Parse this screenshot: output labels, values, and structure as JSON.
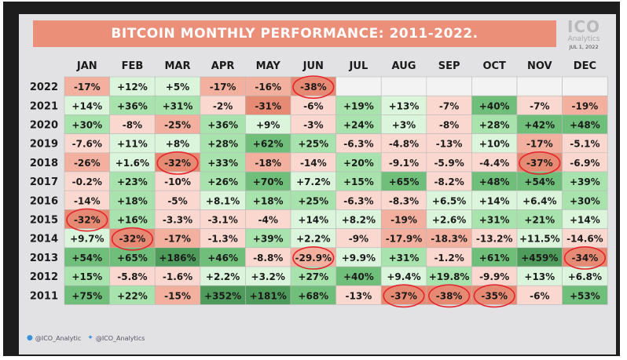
{
  "title": "BITCOIN MONTHLY PERFORMANCE: 2011-2022.",
  "logo": {
    "mark": "ICO",
    "name": "Analytics",
    "date": "JUL 1, 2022"
  },
  "footer": {
    "handle1": "@ICO_Analytic",
    "handle2": "@ICO_Analytics",
    "icon1": "globe-icon",
    "icon2": "twitter-icon"
  },
  "colors": {
    "banner": "#ec8f79",
    "neg_strong": "#e68a73",
    "neg_mid": "#f3b09e",
    "neg_light": "#fbd8cf",
    "pos_light": "#dbf4dc",
    "pos_mid": "#a8e3ad",
    "pos_strong": "#6fbf7b",
    "pos_xstrong": "#4f9b5c",
    "annotation": "#e8242b"
  },
  "chart_data": {
    "type": "heatmap",
    "title": "BITCOIN MONTHLY PERFORMANCE: 2011-2022.",
    "columns": [
      "JAN",
      "FEB",
      "MAR",
      "APR",
      "MAY",
      "JUN",
      "JUL",
      "AUG",
      "SEP",
      "OCT",
      "NOV",
      "DEC"
    ],
    "rows": [
      {
        "year": "2022",
        "cells": [
          "-17%",
          "+12%",
          "+5%",
          "-17%",
          "-16%",
          "-38%",
          "",
          "",
          "",
          "",
          "",
          ""
        ]
      },
      {
        "year": "2021",
        "cells": [
          "+14%",
          "+36%",
          "+31%",
          "-2%",
          "-31%",
          "-6%",
          "+19%",
          "+13%",
          "-7%",
          "+40%",
          "-7%",
          "-19%"
        ]
      },
      {
        "year": "2020",
        "cells": [
          "+30%",
          "-8%",
          "-25%",
          "+36%",
          "+9%",
          "-3%",
          "+24%",
          "+3%",
          "-8%",
          "+28%",
          "+42%",
          "+48%"
        ]
      },
      {
        "year": "2019",
        "cells": [
          "-7.6%",
          "+11%",
          "+8%",
          "+28%",
          "+62%",
          "+25%",
          "-6.3%",
          "-4.8%",
          "-13%",
          "+10%",
          "-17%",
          "-5.1%"
        ]
      },
      {
        "year": "2018",
        "cells": [
          "-26%",
          "+1.6%",
          "-32%",
          "+33%",
          "-18%",
          "-14%",
          "+20%",
          "-9.1%",
          "-5.9%",
          "-4.4%",
          "-37%",
          "-6.9%"
        ]
      },
      {
        "year": "2017",
        "cells": [
          "-0.2%",
          "+23%",
          "-10%",
          "+26%",
          "+70%",
          "+7.2%",
          "+15%",
          "+65%",
          "-8.2%",
          "+48%",
          "+54%",
          "+39%"
        ]
      },
      {
        "year": "2016",
        "cells": [
          "-14%",
          "+18%",
          "-5%",
          "+8.1%",
          "+18%",
          "+25%",
          "-6.3%",
          "-8.3%",
          "+6.5%",
          "+14%",
          "+6.4%",
          "+30%"
        ]
      },
      {
        "year": "2015",
        "cells": [
          "-32%",
          "+16%",
          "-3.3%",
          "-3.1%",
          "-4%",
          "+14%",
          "+8.2%",
          "-19%",
          "+2.6%",
          "+31%",
          "+21%",
          "+14%"
        ]
      },
      {
        "year": "2014",
        "cells": [
          "+9.7%",
          "-32%",
          "-17%",
          "-1.3%",
          "+39%",
          "+2.2%",
          "-9%",
          "-17.9%",
          "-18.3%",
          "-13.2%",
          "+11.5%",
          "-14.6%"
        ]
      },
      {
        "year": "2013",
        "cells": [
          "+54%",
          "+65%",
          "+186%",
          "+46%",
          "-8.8%",
          "-29.9%",
          "+9.9%",
          "+31%",
          "-1.2%",
          "+61%",
          "+459%",
          "-34%"
        ]
      },
      {
        "year": "2012",
        "cells": [
          "+15%",
          "-5.8%",
          "-1.6%",
          "+2.2%",
          "+3.2%",
          "+27%",
          "+40%",
          "+9.4%",
          "+19.8%",
          "-9.9%",
          "+13%",
          "+6.8%"
        ]
      },
      {
        "year": "2011",
        "cells": [
          "+75%",
          "+22%",
          "-15%",
          "+352%",
          "+181%",
          "+68%",
          "-13%",
          "-37%",
          "-38%",
          "-35%",
          "-6%",
          "+53%"
        ]
      }
    ],
    "circled": [
      {
        "year": "2022",
        "month": "JUN"
      },
      {
        "year": "2018",
        "month": "MAR"
      },
      {
        "year": "2018",
        "month": "NOV"
      },
      {
        "year": "2015",
        "month": "JAN"
      },
      {
        "year": "2014",
        "month": "FEB"
      },
      {
        "year": "2013",
        "month": "JUN"
      },
      {
        "year": "2013",
        "month": "DEC"
      },
      {
        "year": "2011",
        "month": "AUG"
      },
      {
        "year": "2011",
        "month": "SEP"
      },
      {
        "year": "2011",
        "month": "OCT"
      }
    ]
  }
}
